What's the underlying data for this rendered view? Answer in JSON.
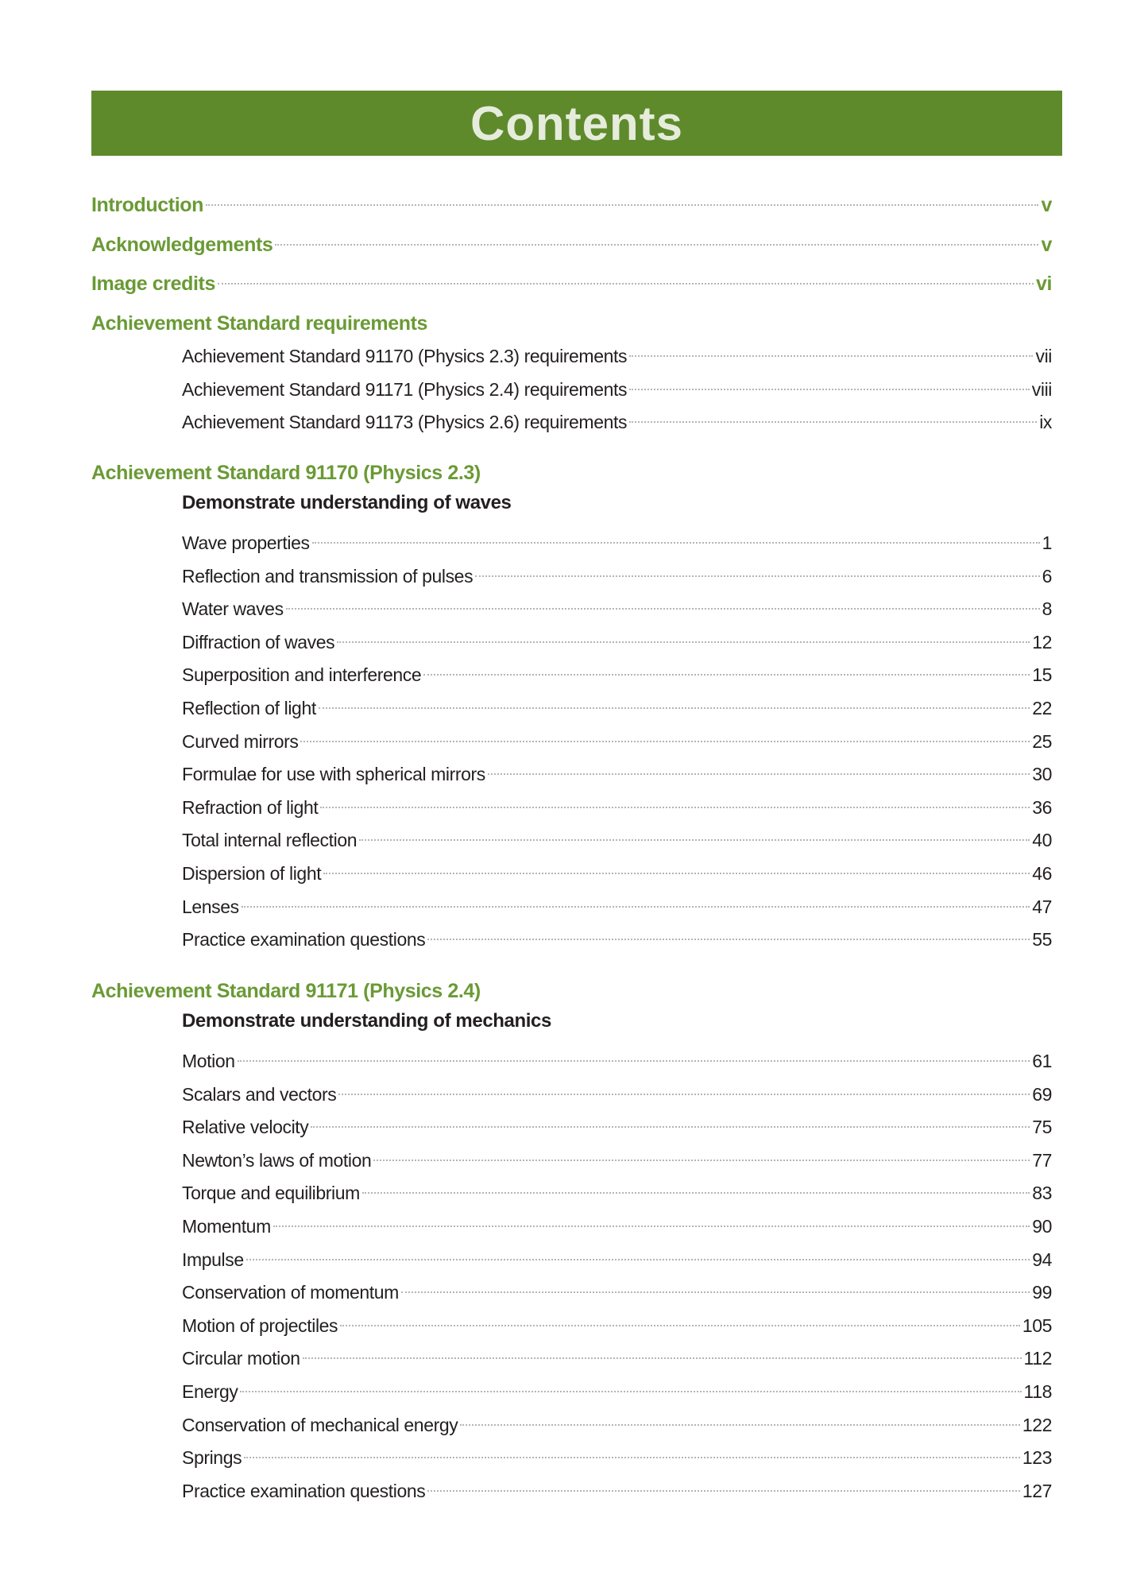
{
  "header": {
    "title": "Contents"
  },
  "front_matter": [
    {
      "title": "Introduction",
      "page": "v"
    },
    {
      "title": "Acknowledgements",
      "page": "v"
    },
    {
      "title": "Image credits",
      "page": "vi"
    }
  ],
  "requirements": {
    "heading": "Achievement Standard requirements",
    "items": [
      {
        "title": "Achievement Standard 91170 (Physics 2.3) requirements",
        "page": "vii"
      },
      {
        "title": "Achievement Standard 91171 (Physics 2.4) requirements",
        "page": "viii"
      },
      {
        "title": "Achievement Standard 91173 (Physics 2.6) requirements",
        "page": "ix"
      }
    ]
  },
  "sections": [
    {
      "heading": "Achievement Standard 91170 (Physics 2.3)",
      "subtitle": "Demonstrate understanding of waves",
      "entries": [
        {
          "title": "Wave properties",
          "page": "1"
        },
        {
          "title": "Reflection and transmission of pulses",
          "page": "6"
        },
        {
          "title": "Water waves",
          "page": "8"
        },
        {
          "title": "Diffraction of waves",
          "page": "12"
        },
        {
          "title": "Superposition and interference",
          "page": "15"
        },
        {
          "title": "Reflection of light",
          "page": "22"
        },
        {
          "title": "Curved mirrors",
          "page": "25"
        },
        {
          "title": "Formulae for use with spherical mirrors",
          "page": "30"
        },
        {
          "title": "Refraction of light",
          "page": "36"
        },
        {
          "title": "Total internal reflection",
          "page": "40"
        },
        {
          "title": "Dispersion of light",
          "page": "46"
        },
        {
          "title": "Lenses",
          "page": "47"
        },
        {
          "title": "Practice examination questions",
          "page": "55"
        }
      ]
    },
    {
      "heading": "Achievement Standard 91171 (Physics 2.4)",
      "subtitle": "Demonstrate understanding of mechanics",
      "entries": [
        {
          "title": "Motion",
          "page": "61"
        },
        {
          "title": "Scalars and vectors",
          "page": "69"
        },
        {
          "title": "Relative velocity",
          "page": "75"
        },
        {
          "title": "Newton’s laws of motion",
          "page": "77"
        },
        {
          "title": "Torque and equilibrium",
          "page": "83"
        },
        {
          "title": "Momentum",
          "page": "90"
        },
        {
          "title": "Impulse",
          "page": "94"
        },
        {
          "title": "Conservation of momentum",
          "page": "99"
        },
        {
          "title": "Motion of projectiles",
          "page": "105"
        },
        {
          "title": "Circular motion",
          "page": "112"
        },
        {
          "title": "Energy",
          "page": "118"
        },
        {
          "title": "Conservation of mechanical energy",
          "page": "122"
        },
        {
          "title": "Springs",
          "page": "123"
        },
        {
          "title": "Practice examination questions",
          "page": "127"
        }
      ]
    }
  ]
}
